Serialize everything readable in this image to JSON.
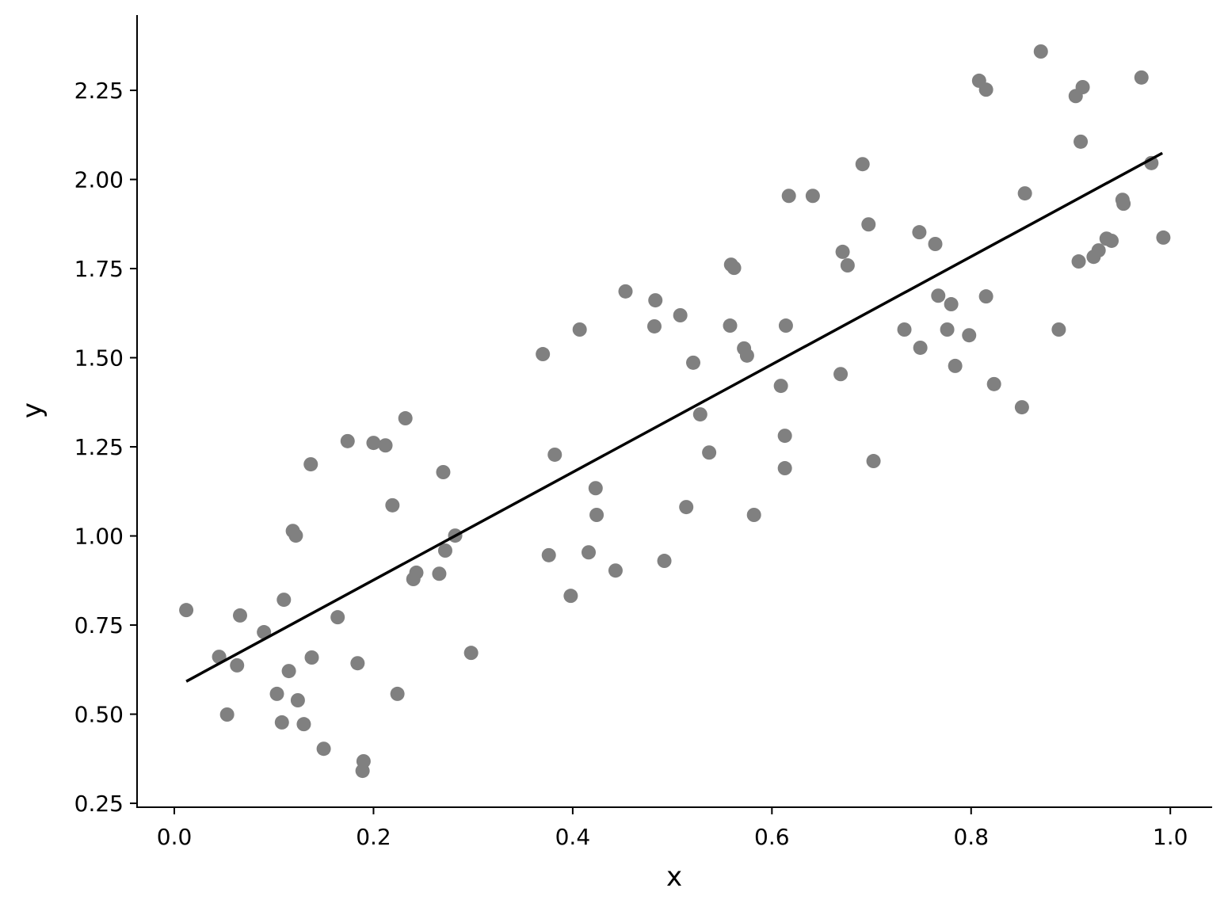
{
  "chart_data": {
    "type": "scatter",
    "x_label": "x",
    "y_label": "y",
    "xlim": [
      -0.0374,
      1.042
    ],
    "ylim": [
      0.239,
      2.459
    ],
    "xticks": [
      {
        "value": 0,
        "label": "0.0"
      },
      {
        "value": 0.2,
        "label": "0.2"
      },
      {
        "value": 0.4,
        "label": "0.4"
      },
      {
        "value": 0.6,
        "label": "0.6"
      },
      {
        "value": 0.8,
        "label": "0.8"
      },
      {
        "value": 1,
        "label": "1.0"
      }
    ],
    "yticks": [
      0.25,
      {
        "value": 0.5,
        "label": "0.50"
      },
      0.75,
      {
        "value": 1,
        "label": "1.00"
      },
      1.25,
      {
        "value": 1.5,
        "label": "1.50"
      },
      1.75,
      {
        "value": 2,
        "label": "2.00"
      },
      2.25
    ],
    "grid": false,
    "points": {
      "color": "#808080",
      "x": [
        0.012,
        0.045,
        0.053,
        0.063,
        0.066,
        0.09,
        0.103,
        0.108,
        0.11,
        0.115,
        0.119,
        0.122,
        0.124,
        0.13,
        0.137,
        0.138,
        0.15,
        0.164,
        0.174,
        0.184,
        0.19,
        0.189,
        0.2,
        0.212,
        0.219,
        0.224,
        0.232,
        0.24,
        0.243,
        0.266,
        0.27,
        0.272,
        0.282,
        0.298,
        0.37,
        0.376,
        0.382,
        0.398,
        0.407,
        0.416,
        0.423,
        0.424,
        0.443,
        0.453,
        0.482,
        0.483,
        0.492,
        0.508,
        0.514,
        0.521,
        0.528,
        0.537,
        0.558,
        0.559,
        0.562,
        0.572,
        0.575,
        0.582,
        0.609,
        0.613,
        0.613,
        0.614,
        0.617,
        0.641,
        0.669,
        0.671,
        0.676,
        0.691,
        0.697,
        0.702,
        0.733,
        0.748,
        0.749,
        0.764,
        0.767,
        0.776,
        0.78,
        0.784,
        0.798,
        0.808,
        0.815,
        0.815,
        0.823,
        0.851,
        0.854,
        0.87,
        0.888,
        0.905,
        0.908,
        0.91,
        0.912,
        0.923,
        0.928,
        0.936,
        0.941,
        0.952,
        0.953,
        0.971,
        0.981,
        0.993
      ],
      "y": [
        0.792,
        0.661,
        0.499,
        0.637,
        0.777,
        0.73,
        0.557,
        0.477,
        0.821,
        0.621,
        1.014,
        1.001,
        0.539,
        0.472,
        1.201,
        0.659,
        0.403,
        0.772,
        1.266,
        0.643,
        0.368,
        0.341,
        1.261,
        1.254,
        1.086,
        0.557,
        1.33,
        0.879,
        0.897,
        0.894,
        1.179,
        0.959,
        1.001,
        0.672,
        1.51,
        0.946,
        1.228,
        0.832,
        1.579,
        0.954,
        1.134,
        1.059,
        0.903,
        1.686,
        1.588,
        1.661,
        0.93,
        1.619,
        1.081,
        1.486,
        1.341,
        1.234,
        1.59,
        1.761,
        1.752,
        1.526,
        1.506,
        1.059,
        1.421,
        1.281,
        1.19,
        1.59,
        1.954,
        1.954,
        1.454,
        1.797,
        1.759,
        2.043,
        1.874,
        1.21,
        1.579,
        1.852,
        1.528,
        1.819,
        1.674,
        1.579,
        1.65,
        1.477,
        1.563,
        2.277,
        2.252,
        1.672,
        1.426,
        1.361,
        1.961,
        2.359,
        1.579,
        2.234,
        1.77,
        2.106,
        2.259,
        1.783,
        1.801,
        1.834,
        1.828,
        1.943,
        1.932,
        2.286,
        2.046,
        1.837
      ]
    },
    "fit_line": {
      "color": "#000000",
      "x": [
        0.012,
        0.992
      ],
      "y": [
        0.592,
        2.074
      ]
    }
  }
}
